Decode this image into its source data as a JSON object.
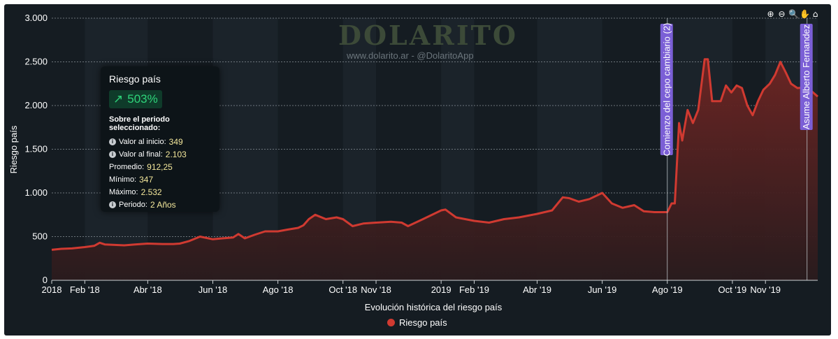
{
  "watermark": {
    "logo": "DOLARITO",
    "site": "www.dolarito.ar - @DolaritoApp"
  },
  "toolbar": {
    "icons": [
      "zoom-in-icon",
      "zoom-out-icon",
      "zoom-icon",
      "pan-icon",
      "home-icon"
    ],
    "glyphs": [
      "⊕",
      "⊖",
      "🔍",
      "✋",
      "⌂"
    ]
  },
  "info_panel": {
    "title": "Riesgo país",
    "badge_value": "503%",
    "subtitle": "Sobre el periodo seleccionado:",
    "rows": [
      {
        "label": "Valor al inicio:",
        "value": "349",
        "info_icon": true
      },
      {
        "label": "Valor al final:",
        "value": "2.103",
        "info_icon": true
      },
      {
        "label": "Promedio:",
        "value": "912,25",
        "info_icon": false
      },
      {
        "label": "Mínimo:",
        "value": "347",
        "info_icon": false
      },
      {
        "label": "Máximo:",
        "value": "2.532",
        "info_icon": false
      },
      {
        "label": "Periodo:",
        "value": "2 Años",
        "info_icon": true
      }
    ]
  },
  "legend": {
    "label": "Riesgo país"
  },
  "colors": {
    "background": "#151c22",
    "band_alt": "#1b232a",
    "line": "#d03a31",
    "area_top": "#6e2523",
    "area_bottom": "#2a1b1d",
    "annotation_bg": "#7b5fd6"
  },
  "chart_data": {
    "type": "area",
    "title": "",
    "xlabel": "Evolución histórica del riesgo país",
    "ylabel": "Riesgo país",
    "ylim": [
      0,
      3000
    ],
    "xlim": [
      "2018-01-01",
      "2019-12-20"
    ],
    "y_ticks": [
      0,
      500,
      1000,
      1500,
      2000,
      2500,
      3000
    ],
    "y_tick_labels": [
      "0",
      "500",
      "1.000",
      "1.500",
      "2.000",
      "2.500",
      "3.000"
    ],
    "x_ticks": [
      {
        "date": "2018-01-01",
        "label": "2018"
      },
      {
        "date": "2018-02-01",
        "label": "Feb '18"
      },
      {
        "date": "2018-04-01",
        "label": "Abr '18"
      },
      {
        "date": "2018-06-01",
        "label": "Jun '18"
      },
      {
        "date": "2018-08-01",
        "label": "Ago '18"
      },
      {
        "date": "2018-10-01",
        "label": "Oct '18"
      },
      {
        "date": "2018-11-01",
        "label": "Nov '18"
      },
      {
        "date": "2019-01-01",
        "label": "2019"
      },
      {
        "date": "2019-02-01",
        "label": "Feb '19"
      },
      {
        "date": "2019-04-01",
        "label": "Abr '19"
      },
      {
        "date": "2019-06-01",
        "label": "Jun '19"
      },
      {
        "date": "2019-08-01",
        "label": "Ago '19"
      },
      {
        "date": "2019-10-01",
        "label": "Oct '19"
      },
      {
        "date": "2019-11-01",
        "label": "Nov '19"
      }
    ],
    "grid": true,
    "legend_position": "bottom-center",
    "series": [
      {
        "name": "Riesgo país",
        "color": "#d03a31",
        "points": [
          [
            "2018-01-01",
            349
          ],
          [
            "2018-01-10",
            360
          ],
          [
            "2018-01-20",
            365
          ],
          [
            "2018-02-01",
            380
          ],
          [
            "2018-02-10",
            395
          ],
          [
            "2018-02-15",
            430
          ],
          [
            "2018-02-20",
            410
          ],
          [
            "2018-03-01",
            405
          ],
          [
            "2018-03-10",
            400
          ],
          [
            "2018-03-20",
            410
          ],
          [
            "2018-04-01",
            420
          ],
          [
            "2018-04-15",
            415
          ],
          [
            "2018-04-25",
            415
          ],
          [
            "2018-05-01",
            420
          ],
          [
            "2018-05-10",
            450
          ],
          [
            "2018-05-20",
            500
          ],
          [
            "2018-06-01",
            470
          ],
          [
            "2018-06-10",
            480
          ],
          [
            "2018-06-20",
            490
          ],
          [
            "2018-06-25",
            530
          ],
          [
            "2018-07-01",
            480
          ],
          [
            "2018-07-10",
            520
          ],
          [
            "2018-07-20",
            560
          ],
          [
            "2018-08-01",
            560
          ],
          [
            "2018-08-10",
            580
          ],
          [
            "2018-08-20",
            600
          ],
          [
            "2018-08-25",
            630
          ],
          [
            "2018-08-30",
            700
          ],
          [
            "2018-09-05",
            750
          ],
          [
            "2018-09-15",
            700
          ],
          [
            "2018-09-25",
            720
          ],
          [
            "2018-10-01",
            700
          ],
          [
            "2018-10-10",
            620
          ],
          [
            "2018-10-20",
            650
          ],
          [
            "2018-11-01",
            660
          ],
          [
            "2018-11-15",
            670
          ],
          [
            "2018-11-25",
            660
          ],
          [
            "2018-12-01",
            620
          ],
          [
            "2018-12-15",
            700
          ],
          [
            "2019-01-01",
            800
          ],
          [
            "2019-01-05",
            810
          ],
          [
            "2019-01-15",
            720
          ],
          [
            "2019-02-01",
            680
          ],
          [
            "2019-02-15",
            660
          ],
          [
            "2019-03-01",
            700
          ],
          [
            "2019-03-15",
            720
          ],
          [
            "2019-04-01",
            760
          ],
          [
            "2019-04-15",
            800
          ],
          [
            "2019-04-25",
            950
          ],
          [
            "2019-05-01",
            940
          ],
          [
            "2019-05-10",
            900
          ],
          [
            "2019-05-20",
            930
          ],
          [
            "2019-06-01",
            1000
          ],
          [
            "2019-06-10",
            880
          ],
          [
            "2019-06-20",
            830
          ],
          [
            "2019-07-01",
            860
          ],
          [
            "2019-07-10",
            790
          ],
          [
            "2019-07-20",
            780
          ],
          [
            "2019-08-01",
            780
          ],
          [
            "2019-08-05",
            880
          ],
          [
            "2019-08-08",
            880
          ],
          [
            "2019-08-12",
            1800
          ],
          [
            "2019-08-15",
            1600
          ],
          [
            "2019-08-20",
            1950
          ],
          [
            "2019-08-25",
            1800
          ],
          [
            "2019-08-30",
            1950
          ],
          [
            "2019-09-05",
            2530
          ],
          [
            "2019-09-08",
            2530
          ],
          [
            "2019-09-12",
            2050
          ],
          [
            "2019-09-20",
            2050
          ],
          [
            "2019-09-25",
            2230
          ],
          [
            "2019-09-30",
            2150
          ],
          [
            "2019-10-05",
            2230
          ],
          [
            "2019-10-10",
            2200
          ],
          [
            "2019-10-15",
            2000
          ],
          [
            "2019-10-20",
            1890
          ],
          [
            "2019-10-25",
            2050
          ],
          [
            "2019-10-30",
            2180
          ],
          [
            "2019-11-05",
            2250
          ],
          [
            "2019-11-10",
            2350
          ],
          [
            "2019-11-15",
            2500
          ],
          [
            "2019-11-20",
            2380
          ],
          [
            "2019-11-25",
            2250
          ],
          [
            "2019-12-01",
            2200
          ],
          [
            "2019-12-10",
            2210
          ],
          [
            "2019-12-20",
            2103
          ]
        ]
      }
    ],
    "annotations": [
      {
        "date": "2019-08-01",
        "label": "Comienzo del cepo cambiario (2)"
      },
      {
        "date": "2019-12-10",
        "label": "Asume Alberto Fernandez"
      }
    ]
  }
}
